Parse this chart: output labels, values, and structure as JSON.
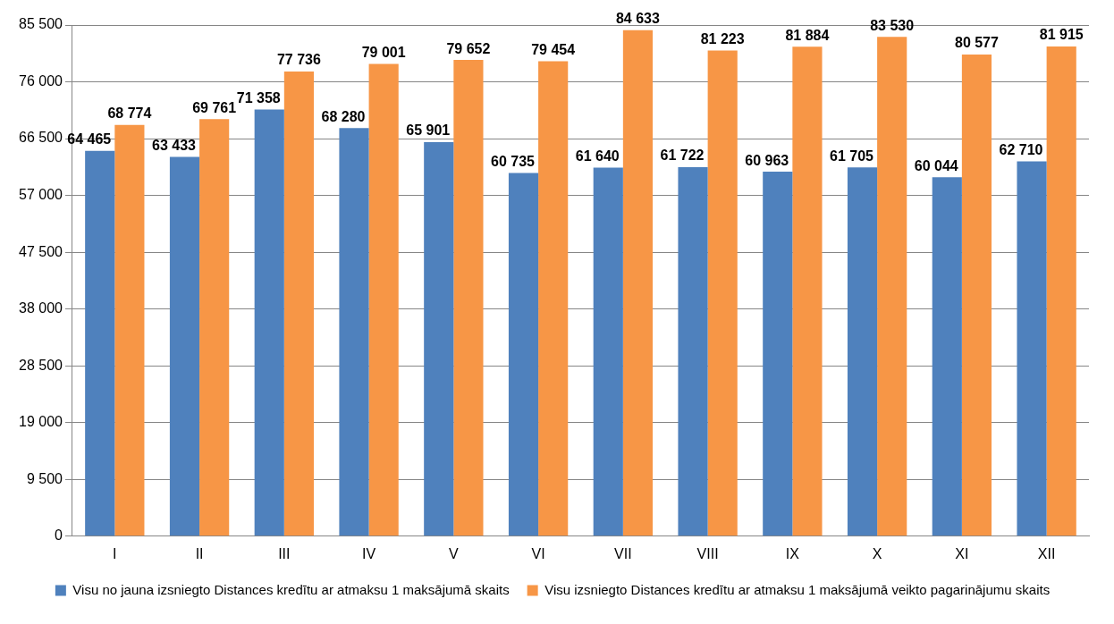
{
  "chart_data": {
    "type": "bar",
    "categories": [
      "I",
      "II",
      "III",
      "IV",
      "V",
      "VI",
      "VII",
      "VIII",
      "IX",
      "X",
      "XI",
      "XII"
    ],
    "series": [
      {
        "name": "Visu no jauna izsniegto Distances kredītu ar atmaksu 1 maksājumā skaits",
        "color": "#4f81bd",
        "values": [
          64465,
          63433,
          71358,
          68280,
          65901,
          60735,
          61640,
          61722,
          60963,
          61705,
          60044,
          62710
        ],
        "value_labels": [
          "64 465",
          "63 433",
          "71 358",
          "68 280",
          "65 901",
          "60 735",
          "61 640",
          "61 722",
          "60 963",
          "61 705",
          "60 044",
          "62 710"
        ]
      },
      {
        "name": "Visu izsniegto Distances kredītu ar atmaksu 1 maksājumā veikto pagarinājumu skaits",
        "color": "#f79646",
        "values": [
          68774,
          69761,
          77736,
          79001,
          79652,
          79454,
          84633,
          81223,
          81884,
          83530,
          80577,
          81915
        ],
        "value_labels": [
          "68 774",
          "69 761",
          "77 736",
          "79 001",
          "79 652",
          "79 454",
          "84 633",
          "81 223",
          "81 884",
          "83 530",
          "80 577",
          "81 915"
        ]
      }
    ],
    "ylim": [
      0,
      85500
    ],
    "yticks": [
      0,
      {
        "value": 9500,
        "label": "9 500"
      },
      {
        "value": 19000,
        "label": "19 000"
      },
      {
        "value": 28500,
        "label": "28 500"
      },
      {
        "value": 38000,
        "label": "38 000"
      },
      {
        "value": 47500,
        "label": "47 500"
      },
      {
        "value": 57000,
        "label": "57 000"
      },
      {
        "value": 66500,
        "label": "66 500"
      },
      {
        "value": 76000,
        "label": "76 000"
      },
      {
        "value": 85500,
        "label": "85 500"
      }
    ],
    "grid": "y",
    "legend": "bottom"
  }
}
